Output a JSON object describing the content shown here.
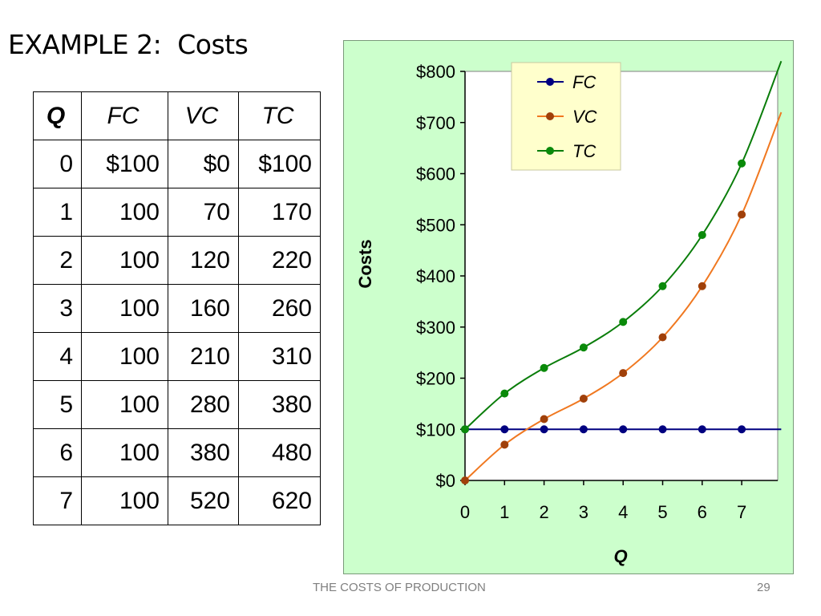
{
  "slide": {
    "title": "EXAMPLE 2:  Costs",
    "footer": "THE COSTS OF PRODUCTION",
    "page_number": "29"
  },
  "table": {
    "headers": [
      "Q",
      "FC",
      "VC",
      "TC"
    ],
    "rows": [
      [
        "0",
        "$100",
        "$0",
        "$100"
      ],
      [
        "1",
        "100",
        "70",
        "170"
      ],
      [
        "2",
        "100",
        "120",
        "220"
      ],
      [
        "3",
        "100",
        "160",
        "260"
      ],
      [
        "4",
        "100",
        "210",
        "310"
      ],
      [
        "5",
        "100",
        "280",
        "380"
      ],
      [
        "6",
        "100",
        "380",
        "480"
      ],
      [
        "7",
        "100",
        "520",
        "620"
      ]
    ]
  },
  "chart_data": {
    "type": "line",
    "x": [
      0,
      1,
      2,
      3,
      4,
      5,
      6,
      7
    ],
    "xlabel": "Q",
    "ylabel": "Costs",
    "ylim": [
      0,
      800
    ],
    "yticks": [
      "$0",
      "$100",
      "$200",
      "$300",
      "$400",
      "$500",
      "$600",
      "$700",
      "$800"
    ],
    "xticks": [
      "0",
      "1",
      "2",
      "3",
      "4",
      "5",
      "6",
      "7"
    ],
    "series": [
      {
        "name": "FC",
        "color": "#000080",
        "values": [
          100,
          100,
          100,
          100,
          100,
          100,
          100,
          100
        ],
        "line_extends_to_x": 8
      },
      {
        "name": "VC",
        "color": "#f07820",
        "marker_color": "#a0400a",
        "values": [
          0,
          70,
          120,
          160,
          210,
          280,
          380,
          520
        ],
        "line_extends_to_x": 8,
        "line_end_value": 720
      },
      {
        "name": "TC",
        "color": "#0a7d0a",
        "marker_color": "#0a8a0a",
        "values": [
          100,
          170,
          220,
          260,
          310,
          380,
          480,
          620
        ],
        "line_extends_to_x": 8,
        "line_end_value": 820
      }
    ],
    "legend_position": "top-center",
    "legend_background": "#ffffcc",
    "plot_background": "#ffffff",
    "panel_background": "#ccffcc",
    "grid": false
  }
}
